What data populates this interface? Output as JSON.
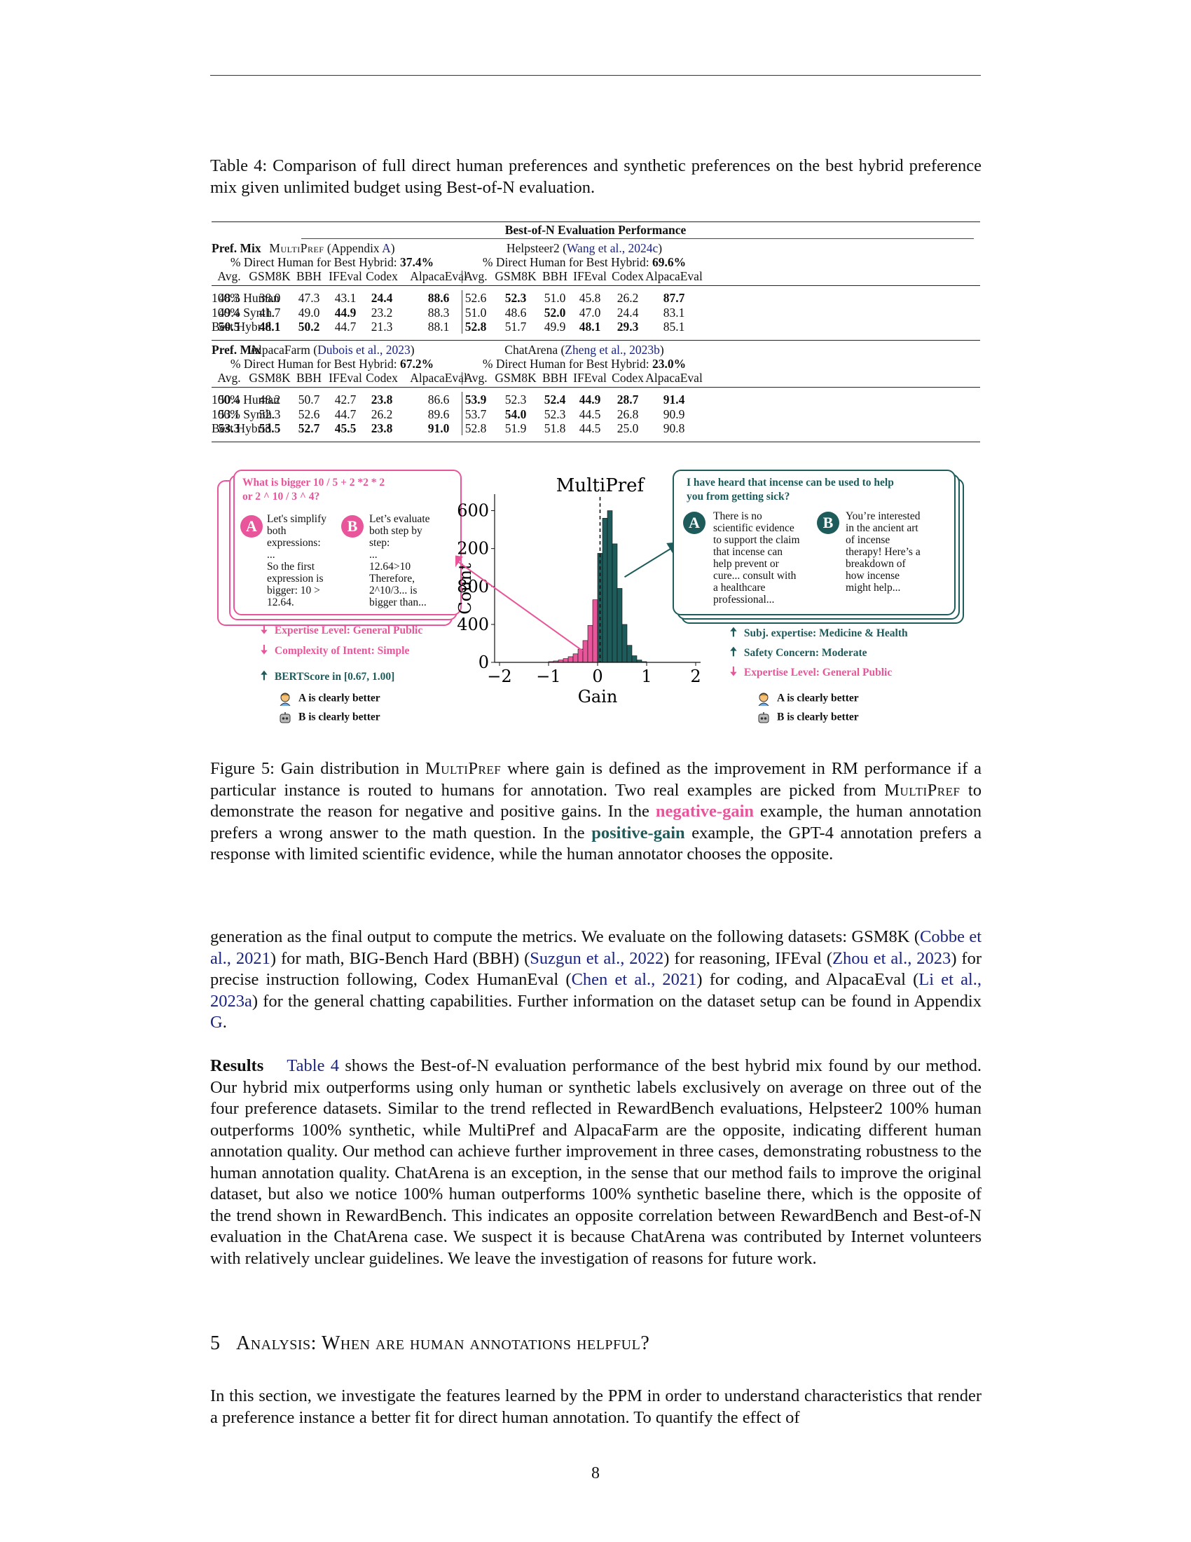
{
  "table": {
    "caption": "Table 4: Comparison of full direct human preferences and synthetic preferences on the best hybrid preference mix given unlimited budget using Best-of-N evaluation.",
    "super_header": "Best-of-N Evaluation Performance",
    "pref_mix_label": "Pref. Mix",
    "columns": [
      "Avg.",
      "GSM8K",
      "BBH",
      "IFEval",
      "Codex",
      "AlpacaEval"
    ],
    "row_labels": [
      "100% Human",
      "100% Synth.",
      "Best Hybrid"
    ],
    "blocks": [
      {
        "left": {
          "name": "MultiPref",
          "name_suffix": " (Appendix ",
          "cite": "A",
          "close": ")",
          "direct_label": "% Direct Human for Best Hybrid: ",
          "direct_value": "37.4%",
          "rows": [
            [
              "48.3",
              "38.0",
              "47.3",
              "43.1",
              "24.4",
              "88.6"
            ],
            [
              "49.4",
              "41.7",
              "49.0",
              "44.9",
              "23.2",
              "88.3"
            ],
            [
              "50.5",
              "48.1",
              "50.2",
              "44.7",
              "21.3",
              "88.1"
            ]
          ]
        },
        "right": {
          "name": "Helpsteer2",
          "name_suffix": " (",
          "cite": "Wang et al., 2024c",
          "close": ")",
          "direct_label": "% Direct Human for Best Hybrid: ",
          "direct_value": "69.6%",
          "rows": [
            [
              "52.6",
              "52.3",
              "51.0",
              "45.8",
              "26.2",
              "87.7"
            ],
            [
              "51.0",
              "48.6",
              "52.0",
              "47.0",
              "24.4",
              "83.1"
            ],
            [
              "52.8",
              "51.7",
              "49.9",
              "48.1",
              "29.3",
              "85.1"
            ]
          ]
        }
      },
      {
        "left": {
          "name": "AlpacaFarm",
          "name_suffix": " (",
          "cite": "Dubois et al., 2023",
          "close": ")",
          "direct_label": "% Direct Human for Best Hybrid: ",
          "direct_value": "67.2%",
          "rows": [
            [
              "50.4",
              "48.2",
              "50.7",
              "42.7",
              "23.8",
              "86.6"
            ],
            [
              "53.1",
              "52.3",
              "52.6",
              "44.7",
              "26.2",
              "89.6"
            ],
            [
              "53.3",
              "53.5",
              "52.7",
              "45.5",
              "23.8",
              "91.0"
            ]
          ]
        },
        "right": {
          "name": "ChatArena",
          "name_suffix": " (",
          "cite": "Zheng et al., 2023b",
          "close": ")",
          "direct_label": "% Direct Human for Best Hybrid: ",
          "direct_value": "23.0%",
          "rows": [
            [
              "53.9",
              "52.3",
              "52.4",
              "44.9",
              "28.7",
              "91.4"
            ],
            [
              "53.7",
              "54.0",
              "52.3",
              "44.5",
              "26.8",
              "90.9"
            ],
            [
              "52.8",
              "51.9",
              "51.8",
              "44.5",
              "25.0",
              "90.8"
            ]
          ]
        }
      }
    ]
  },
  "figure": {
    "left_box": {
      "question": [
        "What is bigger 10 / 5 + 2 *2 * 2",
        "or 2 ^ 10 / 3 ^ 4?"
      ],
      "a_label": "A",
      "a_lines": [
        "Let's simplify",
        "both",
        "expressions:",
        "...",
        "So the first",
        "expression is",
        "bigger: 10 >",
        "12.64."
      ],
      "b_label": "B",
      "b_lines": [
        "Let’s evaluate",
        "both step by",
        "step:",
        "...",
        "12.64>10",
        "Therefore,",
        "2^10/3... is",
        "bigger than..."
      ]
    },
    "left_features": [
      {
        "dir": "down",
        "text": "Expertise Level: General Public",
        "color": "#e8559a"
      },
      {
        "dir": "down",
        "text": "Complexity of Intent: Simple",
        "color": "#e8559a"
      },
      {
        "dir": "up",
        "text": "BERTScore in [0.67, 1.00]",
        "color": "#1e5b5b"
      }
    ],
    "left_verdicts": [
      "A is clearly better",
      "B is clearly better"
    ],
    "right_box": {
      "question": [
        "I have heard that incense can be used to help",
        "you from getting sick?"
      ],
      "a_label": "A",
      "a_lines": [
        "There is no",
        "scientific evidence",
        "to support the claim",
        "that incense can",
        "help prevent or",
        "cure... consult with",
        "a healthcare",
        "professional..."
      ],
      "b_label": "B",
      "b_lines": [
        "You’re interested",
        "in the ancient art",
        "of incense",
        "therapy! Here’s a",
        "breakdown of",
        "how incense",
        "might help..."
      ]
    },
    "right_features": [
      {
        "dir": "up",
        "text": "Subj. expertise: Medicine & Health",
        "color": "#1e5b5b"
      },
      {
        "dir": "up",
        "text": "Safety Concern: Moderate",
        "color": "#1e5b5b"
      },
      {
        "dir": "down",
        "text": "Expertise Level: General Public",
        "color": "#e8559a"
      }
    ],
    "right_verdicts": [
      "A is clearly better",
      "B is clearly better"
    ],
    "colors": {
      "negative": "#e8559a",
      "positive": "#1e5b5b"
    }
  },
  "chart_data": {
    "type": "bar",
    "title": "MultiPref",
    "xlabel": "Gain",
    "ylabel": "Count",
    "xlim": [
      -2.1,
      2.1
    ],
    "ylim": [
      0,
      1700
    ],
    "xticks": [
      "−2",
      "−1",
      "0",
      "1",
      "2"
    ],
    "yticks": [
      "0",
      "400",
      "800",
      "1200",
      "1600"
    ],
    "mean_line_x": 0.05,
    "bin_width": 0.1,
    "bins": [
      {
        "x": -1.0,
        "count": 8,
        "sign": "neg"
      },
      {
        "x": -0.9,
        "count": 15,
        "sign": "neg"
      },
      {
        "x": -0.8,
        "count": 25,
        "sign": "neg"
      },
      {
        "x": -0.7,
        "count": 40,
        "sign": "neg"
      },
      {
        "x": -0.6,
        "count": 60,
        "sign": "neg"
      },
      {
        "x": -0.5,
        "count": 90,
        "sign": "neg"
      },
      {
        "x": -0.4,
        "count": 140,
        "sign": "neg"
      },
      {
        "x": -0.3,
        "count": 230,
        "sign": "neg"
      },
      {
        "x": -0.2,
        "count": 390,
        "sign": "neg"
      },
      {
        "x": -0.1,
        "count": 660,
        "sign": "neg"
      },
      {
        "x": 0.0,
        "count": 1150,
        "sign": "pos"
      },
      {
        "x": 0.1,
        "count": 1520,
        "sign": "pos"
      },
      {
        "x": 0.2,
        "count": 1600,
        "sign": "pos"
      },
      {
        "x": 0.3,
        "count": 1250,
        "sign": "pos"
      },
      {
        "x": 0.4,
        "count": 780,
        "sign": "pos"
      },
      {
        "x": 0.5,
        "count": 400,
        "sign": "pos"
      },
      {
        "x": 0.6,
        "count": 180,
        "sign": "pos"
      },
      {
        "x": 0.7,
        "count": 70,
        "sign": "pos"
      },
      {
        "x": 0.8,
        "count": 25,
        "sign": "pos"
      },
      {
        "x": 0.9,
        "count": 8,
        "sign": "pos"
      }
    ]
  },
  "figure_caption": {
    "prefix": "Figure 5: Gain distribution in ",
    "mp1": "MultiPref",
    "mid1": " where gain is defined as the improvement in RM performance if a particular instance is routed to humans for annotation. Two real examples are picked from ",
    "mp2": "MultiPref",
    "mid2": " to demonstrate the reason for negative and positive gains. In the ",
    "neg": "negative-gain",
    "mid3": " example, the human annotation prefers a wrong answer to the math question. In the ",
    "pos": "positive-gain",
    "end": " example, the GPT-4 annotation prefers a response with limited scientific evidence, while the human annotator chooses the opposite."
  },
  "body": {
    "p1": [
      {
        "t": "generation as the final output to compute the metrics. We evaluate on the following datasets: GSM8K ("
      },
      {
        "c": "Cobbe et al., 2021"
      },
      {
        "t": ") for math, BIG-Bench Hard (BBH) ("
      },
      {
        "c": "Suzgun et al., 2022"
      },
      {
        "t": ") for reasoning, IFEval ("
      },
      {
        "c": "Zhou et al., 2023"
      },
      {
        "t": ") for precise instruction following, Codex HumanEval ("
      },
      {
        "c": "Chen et al., 2021"
      },
      {
        "t": ") for coding, and AlpacaEval ("
      },
      {
        "c": "Li et al., 2023a"
      },
      {
        "t": ") for the general chatting capabilities. Further information on the dataset setup can be found in Appendix "
      },
      {
        "c": "G"
      },
      {
        "t": "."
      }
    ],
    "results_title": "Results",
    "results_ref": "Table 4",
    "results_text": " shows the Best-of-N evaluation performance of the best hybrid mix found by our method. Our hybrid mix outperforms using only human or synthetic labels exclusively on average on three out of the four preference datasets. Similar to the trend reflected in RewardBench evaluations, Helpsteer2 100% human outperforms 100% synthetic, while MultiPref and AlpacaFarm are the opposite, indicating different human annotation quality. Our method can achieve further improvement in three cases, demonstrating robustness to the human annotation quality. ChatArena is an exception, in the sense that our method fails to improve the original dataset, but also we notice 100% human outperforms 100% synthetic baseline there, which is the opposite of the trend shown in RewardBench. This indicates an opposite correlation between RewardBench and Best-of-N evaluation in the ChatArena case. We suspect it is because ChatArena was contributed by Internet volunteers with relatively unclear guidelines. We leave the investigation of reasons for future work.",
    "section_number": "5",
    "section_title": "Analysis: When are human annotations helpful?",
    "p3": "In this section, we investigate the features learned by the PPM in order to understand characteristics that render a preference instance a better fit for direct human annotation. To quantify the effect of"
  },
  "page_number": "8"
}
